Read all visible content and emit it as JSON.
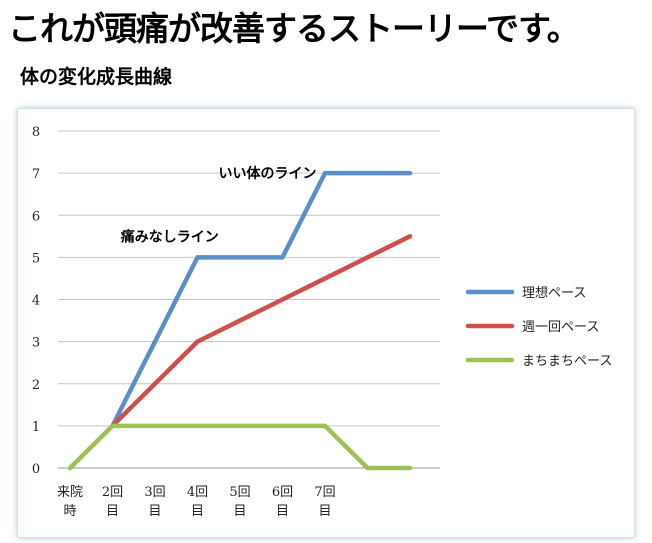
{
  "headline": "これが頭痛が改善するストーリーです。",
  "subtitle": "体の変化成長曲線",
  "chart_data": {
    "type": "line",
    "categories": [
      [
        "来院",
        "時"
      ],
      [
        "2回",
        "目"
      ],
      [
        "3回",
        "目"
      ],
      [
        "4回",
        "目"
      ],
      [
        "5回",
        "目"
      ],
      [
        "6回",
        "目"
      ],
      [
        "7回",
        "目"
      ],
      [
        "",
        ""
      ],
      [
        "",
        ""
      ]
    ],
    "x": [
      0,
      1,
      2,
      3,
      4,
      5,
      6,
      7,
      8
    ],
    "ylim": [
      0,
      8
    ],
    "yticks": [
      0,
      1,
      2,
      3,
      4,
      5,
      6,
      7,
      8
    ],
    "grid": true,
    "legend_position": "right",
    "series": [
      {
        "name": "理想ペース",
        "color": "#5b8fc8",
        "values": [
          null,
          1,
          3,
          5,
          5,
          5,
          7,
          7,
          7
        ]
      },
      {
        "name": "週一回ペース",
        "color": "#cf504a",
        "values": [
          null,
          1,
          2,
          3,
          3.5,
          4,
          4.5,
          5,
          5.5
        ]
      },
      {
        "name": "まちまちペース",
        "color": "#9cc154",
        "values": [
          0,
          1,
          1,
          1,
          1,
          1,
          1,
          0,
          0
        ]
      }
    ],
    "annotations": [
      {
        "text": "いい体のライン",
        "x": 5.8,
        "y": 7
      },
      {
        "text": "痛みなしライン",
        "x": 3.5,
        "y": 5.5
      }
    ]
  }
}
